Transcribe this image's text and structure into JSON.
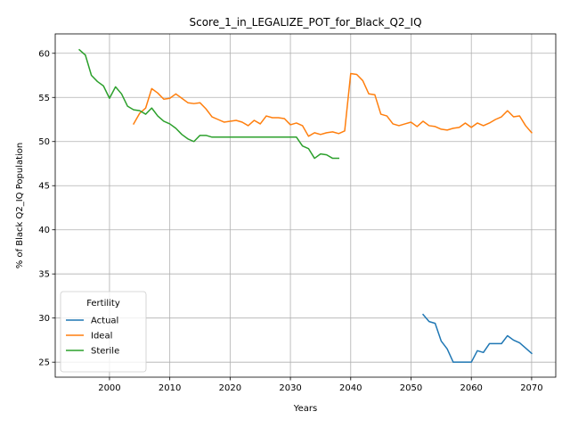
{
  "chart_data": {
    "type": "line",
    "title": "Score_1_in_LEGALIZE_POT_for_Black_Q2_IQ",
    "xlabel": "Years",
    "ylabel": "% of Black Q2_IQ Population",
    "xlim": [
      1991,
      2074
    ],
    "ylim": [
      23.3,
      62.2
    ],
    "xticks": [
      2000,
      2010,
      2020,
      2030,
      2040,
      2050,
      2060,
      2070
    ],
    "yticks": [
      25,
      30,
      35,
      40,
      45,
      50,
      55,
      60
    ],
    "grid": true,
    "legend": {
      "title": "Fertility",
      "placement": "lower-left"
    },
    "series": [
      {
        "name": "Actual",
        "color": "#1f77b4",
        "x": [
          2052,
          2053,
          2054,
          2055,
          2056,
          2057,
          2058,
          2059,
          2060,
          2061,
          2062,
          2063,
          2064,
          2065,
          2066,
          2067,
          2068,
          2069,
          2070
        ],
        "y": [
          30.4,
          29.6,
          29.4,
          27.4,
          26.5,
          25.0,
          25.0,
          25.0,
          25.0,
          26.3,
          26.1,
          27.1,
          27.1,
          27.1,
          28.0,
          27.5,
          27.2,
          26.6,
          26.0
        ]
      },
      {
        "name": "Ideal",
        "color": "#ff7f0e",
        "x": [
          2004,
          2005,
          2006,
          2007,
          2008,
          2009,
          2010,
          2011,
          2012,
          2013,
          2014,
          2015,
          2016,
          2017,
          2018,
          2019,
          2020,
          2021,
          2022,
          2023,
          2024,
          2025,
          2026,
          2027,
          2028,
          2029,
          2030,
          2031,
          2032,
          2033,
          2034,
          2035,
          2036,
          2037,
          2038,
          2039,
          2040,
          2041,
          2042,
          2043,
          2044,
          2045,
          2046,
          2047,
          2048,
          2049,
          2050,
          2051,
          2052,
          2053,
          2054,
          2055,
          2056,
          2057,
          2058,
          2059,
          2060,
          2061,
          2062,
          2063,
          2064,
          2065,
          2066,
          2067,
          2068,
          2069,
          2070
        ],
        "y": [
          52.0,
          53.2,
          53.8,
          56.0,
          55.5,
          54.8,
          54.9,
          55.4,
          54.9,
          54.4,
          54.3,
          54.4,
          53.7,
          52.8,
          52.5,
          52.2,
          52.3,
          52.4,
          52.2,
          51.8,
          52.4,
          52.0,
          52.9,
          52.7,
          52.7,
          52.6,
          51.9,
          52.1,
          51.8,
          50.6,
          51.0,
          50.8,
          51.0,
          51.1,
          50.9,
          51.2,
          57.7,
          57.6,
          56.9,
          55.4,
          55.3,
          53.1,
          52.9,
          52.0,
          51.8,
          52.0,
          52.2,
          51.7,
          52.3,
          51.8,
          51.7,
          51.4,
          51.3,
          51.5,
          51.6,
          52.1,
          51.6,
          52.1,
          51.8,
          52.1,
          52.5,
          52.8,
          53.5,
          52.8,
          52.9,
          51.8,
          51.0
        ]
      },
      {
        "name": "Sterile",
        "color": "#2ca02c",
        "x": [
          1995,
          1996,
          1997,
          1998,
          1999,
          2000,
          2001,
          2002,
          2003,
          2004,
          2005,
          2006,
          2007,
          2008,
          2009,
          2010,
          2011,
          2012,
          2013,
          2014,
          2015,
          2016,
          2017,
          2018,
          2019,
          2020,
          2021,
          2022,
          2023,
          2024,
          2025,
          2026,
          2027,
          2028,
          2029,
          2030,
          2031,
          2032,
          2033,
          2034,
          2035,
          2036,
          2037,
          2038
        ],
        "y": [
          60.4,
          59.8,
          57.5,
          56.8,
          56.3,
          54.9,
          56.2,
          55.4,
          54.0,
          53.6,
          53.5,
          53.1,
          53.8,
          52.9,
          52.3,
          52.0,
          51.5,
          50.8,
          50.3,
          50.0,
          50.7,
          50.7,
          50.5,
          50.5,
          50.5,
          50.5,
          50.5,
          50.5,
          50.5,
          50.5,
          50.5,
          50.5,
          50.5,
          50.5,
          50.5,
          50.5,
          50.5,
          49.5,
          49.2,
          48.1,
          48.6,
          48.5,
          48.1,
          48.1
        ]
      }
    ]
  }
}
